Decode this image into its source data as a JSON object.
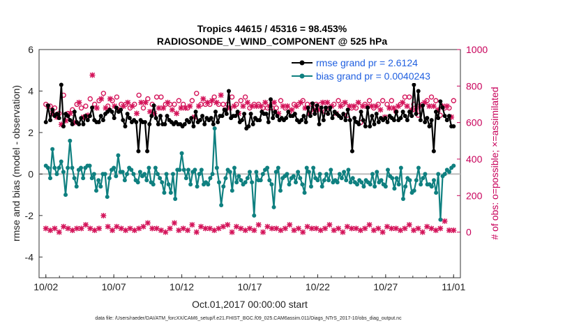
{
  "chart_data": {
    "type": "line",
    "title": "Tropics 44615 / 45316 = 98.453%",
    "subtitle": "RADIOSONDE_V_WIND_COMPONENT @ 525 hPa",
    "xlabel": "Oct.01,2017 00:00:00 start",
    "ylabel": "rmse and bias (model - observation)",
    "ylabel_right": "# of obs: o=possible; ×=assimilated",
    "x_tick_labels": [
      "10/02",
      "10/07",
      "10/12",
      "10/17",
      "10/22",
      "10/27",
      "11/01"
    ],
    "x_tick_days": [
      1,
      6,
      11,
      16,
      21,
      26,
      31
    ],
    "xlim": [
      0.5,
      31.5
    ],
    "ylim": [
      -5,
      6
    ],
    "y_ticks": [
      -4,
      -2,
      0,
      2,
      4,
      6
    ],
    "ylim_right": [
      -250,
      1000
    ],
    "y_ticks_right": [
      0,
      200,
      400,
      600,
      800,
      1000
    ],
    "grid": false,
    "legend_position": "top-right",
    "footnote": "data file: /Users/raeder/DAI/ATM_forcXX/CAM6_setup/f.e21.FHIST_BGC.f09_025.CAM6assim.011/Diags_NTrS_2017-10/obs_diag_output.nc",
    "colors": {
      "rmse": "#000000",
      "bias": "#0f8080",
      "obs": "#d4145a",
      "zero": "#bbbbbb"
    },
    "series": [
      {
        "name": "rmse grand pr = 2.6124",
        "values": [
          2.5,
          3.3,
          2.6,
          3.1,
          2.8,
          2.9,
          2.7,
          4.3,
          2.3,
          2.9,
          2.8,
          2.6,
          2.4,
          3.0,
          2.5,
          2.4,
          2.7,
          2.4,
          2.8,
          2.6,
          2.8,
          3.2,
          2.6,
          2.5,
          2.5,
          2.8,
          2.6,
          2.9,
          3.0,
          3.1,
          3.0,
          2.7,
          3.2,
          3.0,
          3.1,
          2.6,
          2.3,
          2.9,
          2.7,
          2.5,
          2.6,
          2.5,
          1.1,
          2.6,
          2.5,
          2.5,
          1.1,
          2.4,
          2.8,
          3.3,
          2.7,
          2.4,
          2.8,
          2.4,
          2.4,
          2.8,
          2.6,
          2.5,
          2.4,
          2.5,
          2.4,
          2.4,
          2.3,
          2.4,
          2.6,
          2.5,
          2.7,
          2.3,
          3.0,
          2.5,
          2.6,
          2.8,
          2.4,
          2.7,
          2.6,
          2.7,
          2.4,
          3.0,
          2.5,
          2.8,
          2.8,
          3.1,
          2.9,
          4.0,
          2.7,
          2.8,
          2.8,
          3.0,
          2.5,
          2.6,
          2.9,
          2.2,
          2.3,
          2.9,
          2.4,
          2.7,
          2.6,
          2.6,
          3.0,
          2.9,
          2.9,
          2.5,
          3.6,
          2.7,
          3.0,
          2.8,
          2.6,
          2.7,
          2.6,
          2.7,
          3.0,
          2.8,
          2.8,
          2.9,
          2.6,
          2.5,
          2.6,
          2.8,
          2.5,
          3.2,
          2.8,
          3.4,
          2.9,
          3.3,
          2.4,
          3.2,
          2.6,
          3.2,
          2.9,
          3.2,
          2.7,
          3.0,
          2.9,
          2.8,
          2.7,
          2.9,
          2.6,
          3.1,
          2.6,
          1.1,
          2.7,
          2.5,
          2.4,
          3.0,
          2.6,
          2.3,
          3.2,
          2.3,
          2.8,
          2.4,
          2.9,
          2.5,
          2.7,
          2.6,
          2.7,
          2.5,
          2.8,
          2.7,
          2.6,
          3.0,
          2.6,
          2.7,
          3.0,
          2.8,
          2.6,
          3.0,
          2.8,
          4.3,
          2.9,
          4.0,
          2.6,
          3.3,
          2.5,
          2.7,
          2.3,
          2.6,
          1.1,
          3.0,
          2.7,
          3.5,
          3.2,
          2.8,
          2.6,
          2.8,
          2.3,
          2.3
        ]
      },
      {
        "name": "bias grand pr = 0.0040243",
        "values": [
          0.4,
          0.3,
          -0.2,
          1.2,
          0.3,
          0.0,
          0.3,
          0.6,
          0.1,
          -1.0,
          0.3,
          1.6,
          0.3,
          -0.2,
          -0.6,
          0.2,
          0.3,
          -0.2,
          0.3,
          0.4,
          0.4,
          -0.2,
          0.0,
          -0.8,
          -0.3,
          -0.6,
          0.0,
          0.0,
          -1.1,
          -0.2,
          0.2,
          0.3,
          -0.1,
          0.9,
          0.1,
          0.1,
          -0.3,
          0.0,
          0.3,
          0.2,
          0.0,
          -0.3,
          -0.4,
          0.1,
          -0.1,
          0.0,
          -0.3,
          0.3,
          -0.4,
          -0.5,
          0.3,
          0.0,
          -0.2,
          -0.4,
          -0.9,
          0.0,
          -0.5,
          -0.9,
          0.0,
          -1.2,
          0.2,
          0.2,
          1.0,
          0.2,
          -0.2,
          0.2,
          -0.5,
          0.1,
          0.2,
          -0.6,
          0.0,
          0.2,
          -0.5,
          -0.4,
          -0.5,
          -0.2,
          0.0,
          2.2,
          0.3,
          -0.4,
          -1.5,
          -0.6,
          -0.2,
          0.2,
          0.1,
          -0.8,
          0.3,
          -0.4,
          -0.1,
          -0.3,
          -0.5,
          -0.4,
          -0.2,
          0.1,
          -0.4,
          -2.0,
          0.1,
          -0.3,
          -0.3,
          0.0,
          0.2,
          0.3,
          -0.3,
          -0.5,
          -1.6,
          0.1,
          0.3,
          -0.8,
          -0.2,
          -0.1,
          0.0,
          -0.5,
          -0.2,
          -0.1,
          -0.4,
          0.1,
          -0.2,
          -0.5,
          -0.9,
          0.3,
          0.1,
          -0.6,
          0.3,
          -0.2,
          -0.3,
          0.0,
          -0.6,
          -0.3,
          0.0,
          -0.3,
          0.2,
          -0.4,
          -0.3,
          -0.4,
          0.0,
          -0.2,
          0.1,
          -0.3,
          0.2,
          -0.4,
          -0.2,
          -0.4,
          -0.5,
          -0.3,
          -0.4,
          -0.6,
          -0.3,
          -0.4,
          -0.5,
          0.0,
          -0.6,
          0.1,
          -0.4,
          -0.3,
          -0.5,
          -0.6,
          0.2,
          -0.1,
          -0.2,
          -0.7,
          -0.2,
          -0.5,
          0.3,
          -1.2,
          -0.6,
          -0.2,
          -0.3,
          -0.9,
          -0.8,
          -0.3,
          0.3,
          -0.5,
          -0.2,
          0.0,
          -0.5,
          -0.5,
          -0.6,
          -0.3,
          -0.9,
          0.0,
          -2.2,
          -0.1,
          0.0,
          0.2,
          0.1,
          0.3,
          0.4
        ]
      }
    ],
    "obs_possible": [
      700,
      710,
      690,
      660,
      680,
      640,
      650,
      600,
      750,
      620,
      650,
      660,
      670,
      610,
      700,
      720,
      680,
      640,
      690,
      650,
      730,
      880,
      700,
      690,
      720,
      740,
      760,
      690,
      690,
      740,
      720,
      700,
      740,
      680,
      700,
      700,
      700,
      720,
      680,
      700,
      700,
      660,
      750,
      720,
      680,
      720,
      730,
      670,
      700,
      660,
      740,
      690,
      740,
      690,
      700,
      720,
      700,
      680,
      700,
      660,
      720,
      690,
      700,
      690,
      680,
      700,
      720,
      640,
      760,
      700,
      700,
      740,
      700,
      720,
      700,
      730,
      740,
      720,
      700,
      760,
      700,
      680,
      700,
      690,
      740,
      700,
      700,
      660,
      720,
      700,
      740,
      720,
      680,
      700,
      700,
      700,
      700,
      700,
      680,
      720,
      680,
      700,
      680,
      720,
      680,
      660,
      720,
      700,
      680,
      700,
      660,
      680,
      700,
      700,
      700,
      720,
      720,
      690,
      700,
      660,
      700,
      680,
      700,
      680,
      700,
      720,
      660,
      720,
      680,
      700,
      700,
      660,
      720,
      700,
      700,
      720,
      640,
      700,
      680,
      700,
      680,
      720,
      600,
      700,
      700,
      700,
      720,
      700,
      680,
      700,
      700,
      680,
      720,
      640,
      700,
      690,
      720,
      690,
      660,
      700,
      700,
      720,
      740,
      700,
      740,
      680,
      700,
      680,
      640,
      700,
      700,
      720,
      720,
      700,
      740,
      700,
      720,
      680,
      640,
      700,
      680,
      700,
      680,
      640,
      720
    ],
    "obs_assimilated": [
      690,
      690,
      680,
      650,
      680,
      630,
      640,
      590,
      740,
      610,
      640,
      650,
      660,
      600,
      690,
      710,
      670,
      630,
      680,
      640,
      720,
      860,
      690,
      680,
      710,
      730,
      750,
      680,
      680,
      730,
      710,
      690,
      730,
      670,
      690,
      690,
      690,
      710,
      670,
      690,
      690,
      650,
      740,
      710,
      670,
      710,
      720,
      660,
      690,
      650,
      730,
      680,
      730,
      680,
      690,
      710,
      690,
      670,
      690,
      650,
      710,
      680,
      690,
      680,
      670,
      690,
      710,
      630,
      750,
      690,
      690,
      730,
      690,
      710,
      690,
      720,
      730,
      710,
      690,
      750,
      690,
      670,
      690,
      680,
      730,
      690,
      690,
      650,
      710,
      690,
      730,
      710,
      670,
      690,
      690,
      690,
      690,
      690,
      670,
      710,
      670,
      690,
      670,
      710,
      670,
      650,
      710,
      690,
      670,
      690,
      650,
      670,
      690,
      690,
      690,
      710,
      710,
      680,
      690,
      650,
      690,
      670,
      690,
      670,
      690,
      710,
      650,
      710,
      670,
      690,
      690,
      650,
      710,
      690,
      690,
      710,
      630,
      690,
      670,
      690,
      670,
      710,
      590,
      690,
      690,
      690,
      710,
      690,
      670,
      690,
      690,
      670,
      710,
      630,
      690,
      680,
      710,
      680,
      650,
      690,
      690,
      710,
      730,
      690,
      730,
      670,
      690,
      670,
      630,
      690,
      690,
      710,
      710,
      690,
      730,
      690,
      710,
      670,
      630,
      690,
      670,
      690,
      670,
      630,
      710
    ],
    "obs_counts_low": [
      20,
      30,
      10,
      40,
      20,
      10,
      0,
      20,
      30,
      10,
      20,
      0,
      10,
      30,
      20,
      50,
      20,
      10,
      40,
      10,
      20,
      30,
      10,
      20,
      20,
      60,
      90,
      70,
      30,
      20,
      10,
      0,
      30,
      10,
      20,
      40,
      10,
      0,
      20,
      30,
      10,
      0,
      20,
      10,
      30,
      20,
      50,
      10,
      20,
      0,
      20,
      40,
      10,
      20,
      0,
      30,
      20,
      10,
      50,
      20,
      10,
      0,
      20,
      30,
      10,
      20,
      40,
      10,
      0,
      20,
      30,
      10,
      20,
      0,
      20,
      40,
      10,
      0,
      20,
      10,
      30,
      20,
      40,
      10,
      0,
      20,
      30,
      10,
      20,
      40,
      10,
      0,
      20,
      30,
      10,
      20,
      40,
      10,
      0,
      20,
      30,
      10,
      20,
      0,
      20,
      40,
      10,
      0,
      20,
      10,
      40,
      20,
      10,
      30,
      20,
      10,
      0,
      20,
      30,
      10,
      20,
      0,
      20,
      40,
      10,
      0,
      20,
      10,
      40,
      20,
      10,
      30,
      20,
      10,
      0,
      20,
      30,
      10,
      20,
      0,
      20,
      40,
      10,
      0,
      20,
      10,
      40,
      20,
      10,
      30,
      20,
      10,
      0,
      20,
      30,
      10,
      20,
      0,
      20,
      40,
      10,
      0,
      20,
      10,
      40,
      20,
      10,
      30,
      20,
      10,
      0,
      20,
      30,
      10,
      20,
      40,
      10,
      0,
      20,
      30,
      60,
      20,
      10,
      30,
      10,
      0
    ]
  }
}
